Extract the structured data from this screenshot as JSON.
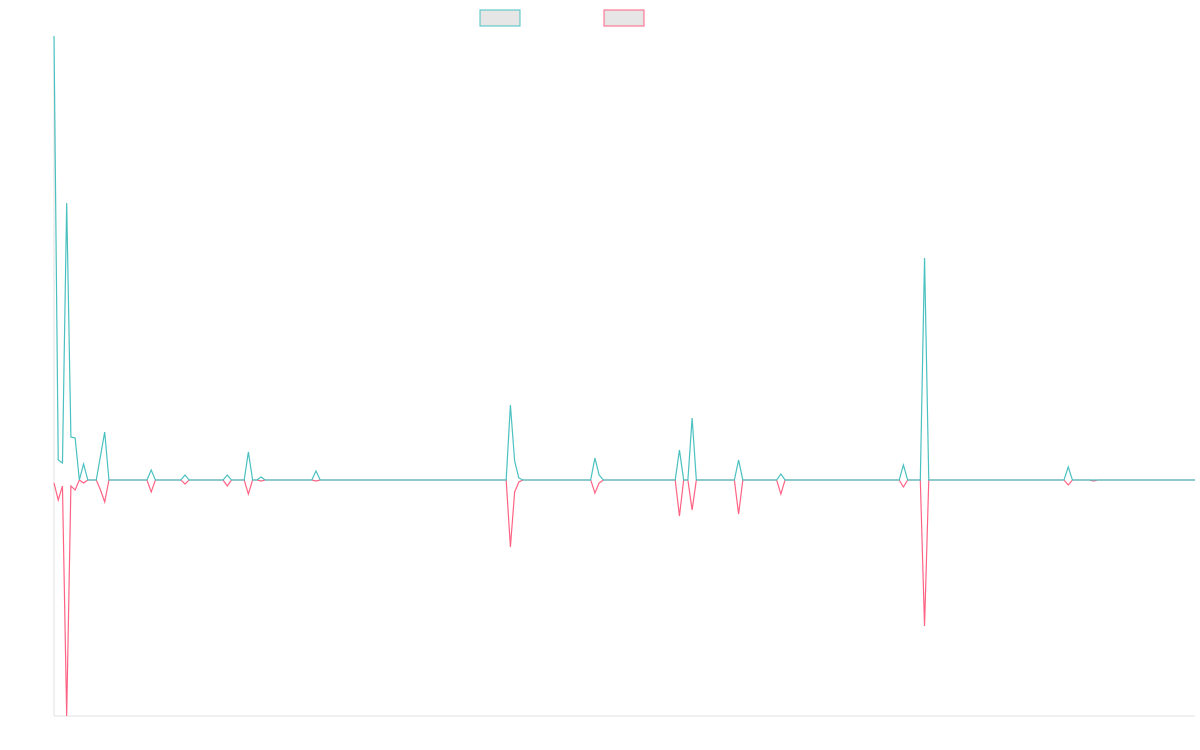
{
  "chart_data": {
    "type": "line",
    "legend": "top",
    "xlim": [
      0,
      270
    ],
    "ylim": [
      -236,
      444
    ],
    "x": [
      0,
      1,
      2,
      3,
      4,
      5,
      6,
      7,
      8,
      10,
      11,
      12,
      13,
      22,
      23,
      24,
      30,
      31,
      32,
      40,
      41,
      42,
      45,
      46,
      47,
      48,
      49,
      50,
      61,
      62,
      63,
      107,
      108,
      109,
      110,
      111,
      127,
      128,
      129,
      130,
      147,
      148,
      149,
      150,
      151,
      152,
      161,
      162,
      163,
      171,
      172,
      173,
      200,
      201,
      202,
      205,
      206,
      207,
      239,
      240,
      241,
      245,
      246,
      247,
      270
    ],
    "series": [
      {
        "color": "#4bc0c0",
        "values": [
          444,
          20,
          17,
          277,
          43,
          42,
          0,
          16,
          0,
          0,
          24,
          48,
          0,
          0,
          10,
          0,
          0,
          5,
          0,
          0,
          5,
          0,
          0,
          28,
          0,
          0,
          3,
          0,
          0,
          9,
          0,
          0,
          75,
          19,
          2,
          0,
          0,
          22,
          5,
          0,
          0,
          30,
          0,
          0,
          62,
          0,
          0,
          20,
          0,
          0,
          6,
          0,
          0,
          15,
          0,
          0,
          222,
          0,
          0,
          13,
          0,
          0,
          0,
          0,
          0
        ]
      },
      {
        "color": "#ff6384",
        "values": [
          -3,
          -20,
          -6,
          -236,
          -6,
          -10,
          0,
          -3,
          0,
          0,
          -10,
          -22,
          0,
          0,
          -12,
          0,
          0,
          -4,
          0,
          0,
          -6,
          0,
          0,
          -14,
          0,
          0,
          -1,
          0,
          0,
          -1,
          0,
          0,
          -67,
          -12,
          -2,
          0,
          0,
          -13,
          -3,
          0,
          0,
          -36,
          0,
          0,
          -30,
          0,
          0,
          -34,
          0,
          0,
          -14,
          0,
          0,
          -7,
          0,
          0,
          -146,
          0,
          0,
          -5,
          0,
          0,
          -1,
          0,
          0
        ]
      }
    ]
  }
}
